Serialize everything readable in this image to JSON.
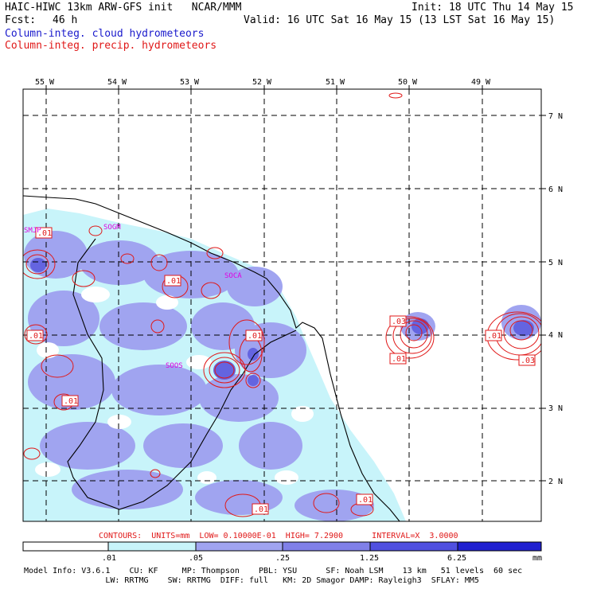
{
  "header": {
    "line1_left": "HAIC-HIWC 13km ARW-GFS init   NCAR/MMM",
    "line1_right": "Init: 18 UTC Thu 14 May 15",
    "fcst_label": "Fcst:",
    "fcst_value": "46 h",
    "valid": "Valid: 16 UTC Sat 16 May 15 (13 LST Sat 16 May 15)",
    "field1": "Column-integ. cloud hydrometeors",
    "field2": "Column-integ. precip. hydrometeors"
  },
  "map": {
    "lon_labels": [
      "55 W",
      "54 W",
      "53 W",
      "52 W",
      "51 W",
      "50 W",
      "49 W"
    ],
    "lat_labels": [
      "7 N",
      "6 N",
      "5 N",
      "4 N",
      "3 N",
      "2 N"
    ],
    "station_labels": [
      "SMJP",
      "SOGM",
      "SOCA",
      "SOOS"
    ],
    "contour_labels": [
      ".01",
      ".01",
      ".01",
      ".01",
      ".01",
      ".03",
      ".01",
      ".01",
      ".03",
      ".01",
      ".01"
    ],
    "colors": {
      "shade_light": "#c8f4fa",
      "shade_mid": "#a0a4f0",
      "shade_dark": "#6464e0",
      "shade_darkest": "#2020d0",
      "contour": "#e01818",
      "station": "#e000e0"
    }
  },
  "contours_info": "CONTOURS:  UNITS=mm  LOW= 0.10000E-01  HIGH= 7.2900      INTERVAL=X  3.0000",
  "colorbar": {
    "ticks": [
      ".01",
      ".05",
      ".25",
      "1.25",
      "6.25"
    ],
    "unit": "mm",
    "colors": [
      "#ffffff",
      "#c8f4fa",
      "#a0a4f0",
      "#8080e8",
      "#5050e0",
      "#2020d0"
    ]
  },
  "footer": {
    "line1": "Model Info: V3.6.1    CU: KF     MP: Thompson    PBL: YSU      SF: Noah LSM    13 km   51 levels  60 sec",
    "line2": "                 LW: RRTMG    SW: RRTMG  DIFF: full   KM: 2D Smagor DAMP: Rayleigh3  SFLAY: MM5"
  }
}
